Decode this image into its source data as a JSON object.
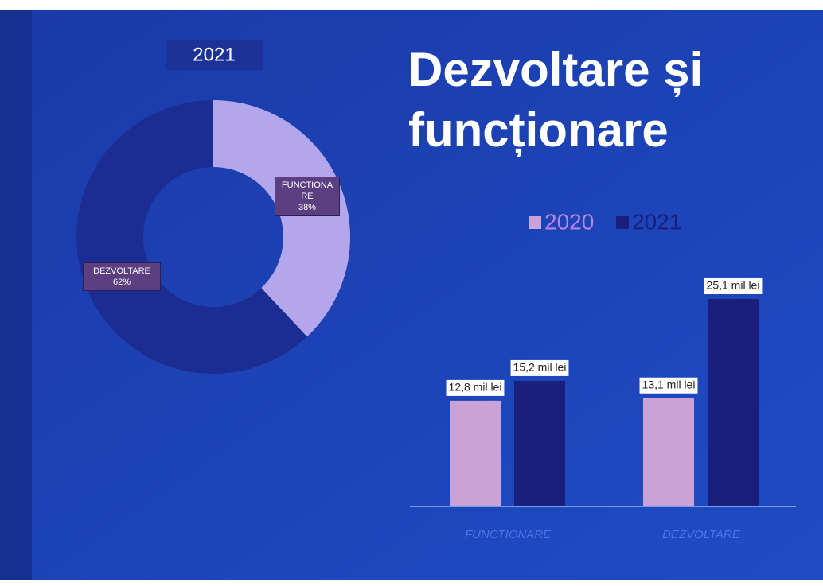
{
  "chart_data": [
    {
      "type": "donut",
      "title": "2021",
      "categories": [
        "FUNCTIONARE",
        "DEZVOLTARE"
      ],
      "values": [
        38,
        62
      ],
      "value_labels": [
        "38%",
        "62%"
      ],
      "colors": [
        "#b3a6ea",
        "#1b2c93"
      ]
    },
    {
      "type": "bar",
      "title": "Dezvoltare și funcționare",
      "categories": [
        "FUNCTIONARE",
        "DEZVOLTARE"
      ],
      "series": [
        {
          "name": "2020",
          "color": "#c9a2d8",
          "values": [
            12.8,
            13.1
          ],
          "value_labels": [
            "12,8 mil lei",
            "13,1 mil lei"
          ]
        },
        {
          "name": "2021",
          "color": "#1a1f7e",
          "values": [
            15.2,
            25.1
          ],
          "value_labels": [
            "15,2 mil lei",
            "25,1 mil lei"
          ]
        }
      ],
      "legend": "top"
    }
  ]
}
